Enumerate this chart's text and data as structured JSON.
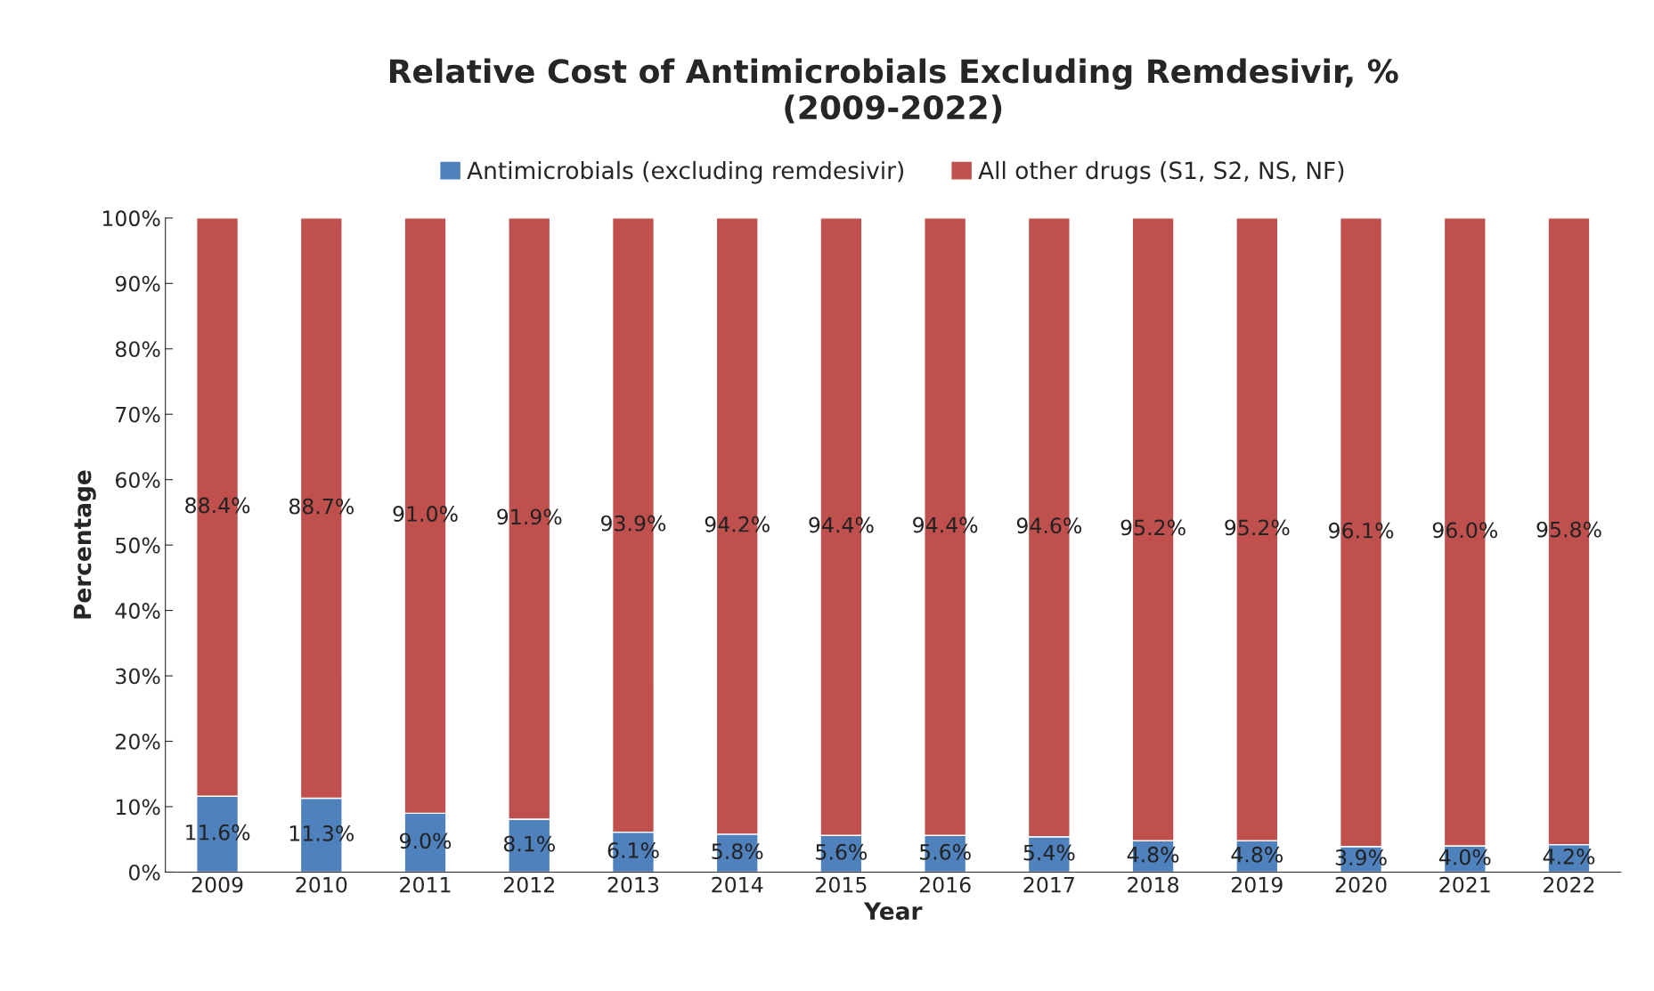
{
  "chart_data": {
    "type": "bar",
    "title": "Relative Cost of Antimicrobials Excluding Remdesivir, %\n(2009-2022)",
    "xlabel": "Year",
    "ylabel": "Percentage",
    "categories": [
      "2009",
      "2010",
      "2011",
      "2012",
      "2013",
      "2014",
      "2015",
      "2016",
      "2017",
      "2018",
      "2019",
      "2020",
      "2021",
      "2022"
    ],
    "stacked": true,
    "legend": "top",
    "grid": false,
    "ylim": [
      0,
      100
    ],
    "yticks": [
      {
        "value": 0,
        "label": "0%"
      },
      {
        "value": 10,
        "label": "10%"
      },
      {
        "value": 20,
        "label": "20%"
      },
      {
        "value": 30,
        "label": "30%"
      },
      {
        "value": 40,
        "label": "40%"
      },
      {
        "value": 50,
        "label": "50%"
      },
      {
        "value": 60,
        "label": "60%"
      },
      {
        "value": 70,
        "label": "70%"
      },
      {
        "value": 80,
        "label": "80%"
      },
      {
        "value": 90,
        "label": "90%"
      },
      {
        "value": 100,
        "label": "100%"
      }
    ],
    "series": [
      {
        "name": "Antimicrobials (excluding remdesivir)",
        "color": "#4f81bd",
        "values": [
          11.6,
          11.3,
          9.0,
          8.1,
          6.1,
          5.8,
          5.6,
          5.6,
          5.4,
          4.8,
          4.8,
          3.9,
          4.0,
          4.2
        ],
        "value_labels": [
          "11.6%",
          "11.3%",
          "9.0%",
          "8.1%",
          "6.1%",
          "5.8%",
          "5.6%",
          "5.6%",
          "5.4%",
          "4.8%",
          "4.8%",
          "3.9%",
          "4.0%",
          "4.2%"
        ]
      },
      {
        "name": "All other drugs (S1, S2, NS, NF)",
        "color": "#c0504d",
        "values": [
          88.4,
          88.7,
          91.0,
          91.9,
          93.9,
          94.2,
          94.4,
          94.4,
          94.6,
          95.2,
          95.2,
          96.1,
          96.0,
          95.8
        ],
        "value_labels": [
          "88.4%",
          "88.7%",
          "91.0%",
          "91.9%",
          "93.9%",
          "94.2%",
          "94.4%",
          "94.4%",
          "94.6%",
          "95.2%",
          "95.2%",
          "96.1%",
          "96.0%",
          "95.8%"
        ]
      }
    ]
  }
}
